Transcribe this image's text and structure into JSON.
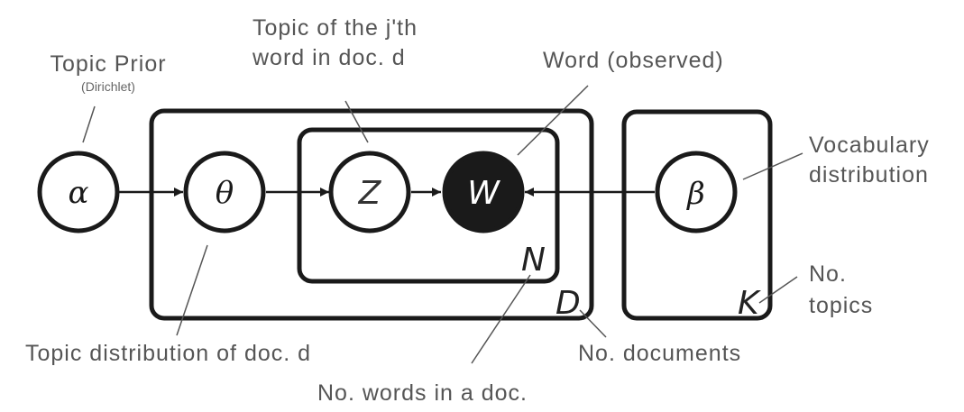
{
  "nodes": {
    "alpha": {
      "symbol": "α"
    },
    "theta": {
      "symbol": "θ"
    },
    "z": {
      "symbol": "Z"
    },
    "w": {
      "symbol": "W"
    },
    "beta": {
      "symbol": "β"
    }
  },
  "plates": {
    "documents": {
      "label": "D"
    },
    "words": {
      "label": "N"
    },
    "topics": {
      "label": "K"
    }
  },
  "annotations": {
    "topic_prior": "Topic Prior",
    "topic_prior_sub": "(Dirichlet)",
    "topic_of_word_line1": "Topic of the j'th",
    "topic_of_word_line2": "word in doc. d",
    "word_observed": "Word (observed)",
    "vocab_line1": "Vocabulary",
    "vocab_line2": "distribution",
    "num_topics_line1": "No.",
    "num_topics_line2": "topics",
    "topic_distribution": "Topic distribution of doc. d",
    "num_documents": "No. documents",
    "num_words": "No. words in a doc."
  },
  "colors": {
    "stroke": "#1a1a1a",
    "observed_fill": "#1a1a1a",
    "annotation_text": "#555555"
  }
}
